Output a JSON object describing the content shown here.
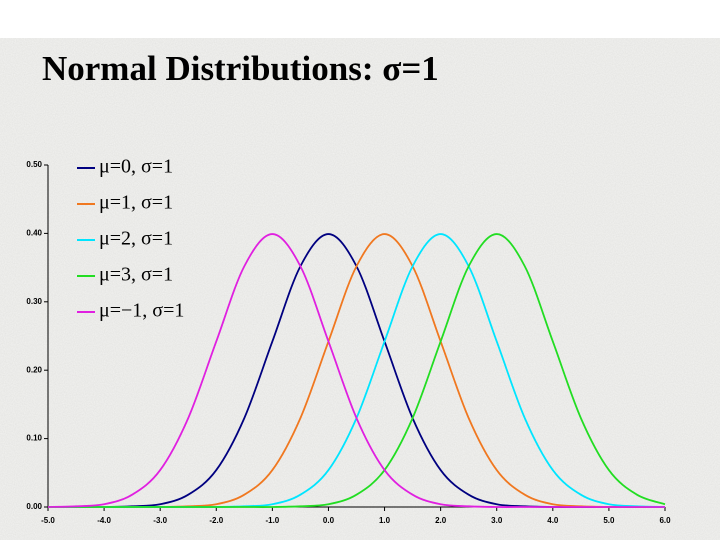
{
  "chart_data": {
    "type": "line",
    "title": "Normal Distributions:  σ=1",
    "x": [
      -5,
      -4.5,
      -4,
      -3.5,
      -3,
      -2.5,
      -2,
      -1.5,
      -1,
      -0.5,
      0,
      0.5,
      1,
      1.5,
      2,
      2.5,
      3,
      3.5,
      4,
      4.5,
      5,
      5.5,
      6
    ],
    "series": [
      {
        "name": "μ=0, σ=1",
        "color": "#000080",
        "values": [
          0,
          0,
          0,
          0.001,
          0.004,
          0.018,
          0.054,
          0.13,
          0.242,
          0.352,
          0.399,
          0.352,
          0.242,
          0.13,
          0.054,
          0.018,
          0.004,
          0.001,
          0,
          0,
          0,
          0,
          0
        ]
      },
      {
        "name": "μ=1, σ=1",
        "color": "#f07820",
        "values": [
          0,
          0,
          0,
          0,
          0,
          0.001,
          0.004,
          0.018,
          0.054,
          0.13,
          0.242,
          0.352,
          0.399,
          0.352,
          0.242,
          0.13,
          0.054,
          0.018,
          0.004,
          0.001,
          0,
          0,
          0
        ]
      },
      {
        "name": "μ=2, σ=1",
        "color": "#00e5ff",
        "values": [
          0,
          0,
          0,
          0,
          0,
          0,
          0,
          0.001,
          0.004,
          0.018,
          0.054,
          0.13,
          0.242,
          0.352,
          0.399,
          0.352,
          0.242,
          0.13,
          0.054,
          0.018,
          0.004,
          0.001,
          0
        ]
      },
      {
        "name": "μ=3, σ=1",
        "color": "#22dd22",
        "values": [
          0,
          0,
          0,
          0,
          0,
          0,
          0,
          0,
          0,
          0.001,
          0.004,
          0.018,
          0.054,
          0.13,
          0.242,
          0.352,
          0.399,
          0.352,
          0.242,
          0.13,
          0.054,
          0.018,
          0.004
        ]
      },
      {
        "name": "μ=−1, σ=1",
        "color": "#e020e0",
        "values": [
          0,
          0.001,
          0.004,
          0.018,
          0.054,
          0.13,
          0.242,
          0.352,
          0.399,
          0.352,
          0.242,
          0.13,
          0.054,
          0.018,
          0.004,
          0.001,
          0,
          0,
          0,
          0,
          0,
          0,
          0
        ]
      }
    ],
    "xlim": [
      -5,
      6
    ],
    "xticks": [
      {
        "value": -5,
        "label": "-5.0"
      },
      {
        "value": -4,
        "label": "-4.0"
      },
      {
        "value": -3,
        "label": "-3.0"
      },
      {
        "value": -2,
        "label": "-2.0"
      },
      {
        "value": -1,
        "label": "-1.0"
      },
      {
        "value": 0,
        "label": "0.0"
      },
      {
        "value": 1,
        "label": "1.0"
      },
      {
        "value": 2,
        "label": "2.0"
      },
      {
        "value": 3,
        "label": "3.0"
      },
      {
        "value": 4,
        "label": "4.0"
      },
      {
        "value": 5,
        "label": "5.0"
      },
      {
        "value": 6,
        "label": "6.0"
      }
    ],
    "ylim": [
      0,
      0.5
    ],
    "yticks": [
      {
        "value": 0,
        "label": "0.00"
      },
      {
        "value": 0.1,
        "label": "0.10"
      },
      {
        "value": 0.2,
        "label": "0.20"
      },
      {
        "value": 0.3,
        "label": "0.30"
      },
      {
        "value": 0.4,
        "label": "0.40"
      },
      {
        "value": 0.5,
        "label": "0.50"
      }
    ],
    "legend": "upper left"
  }
}
